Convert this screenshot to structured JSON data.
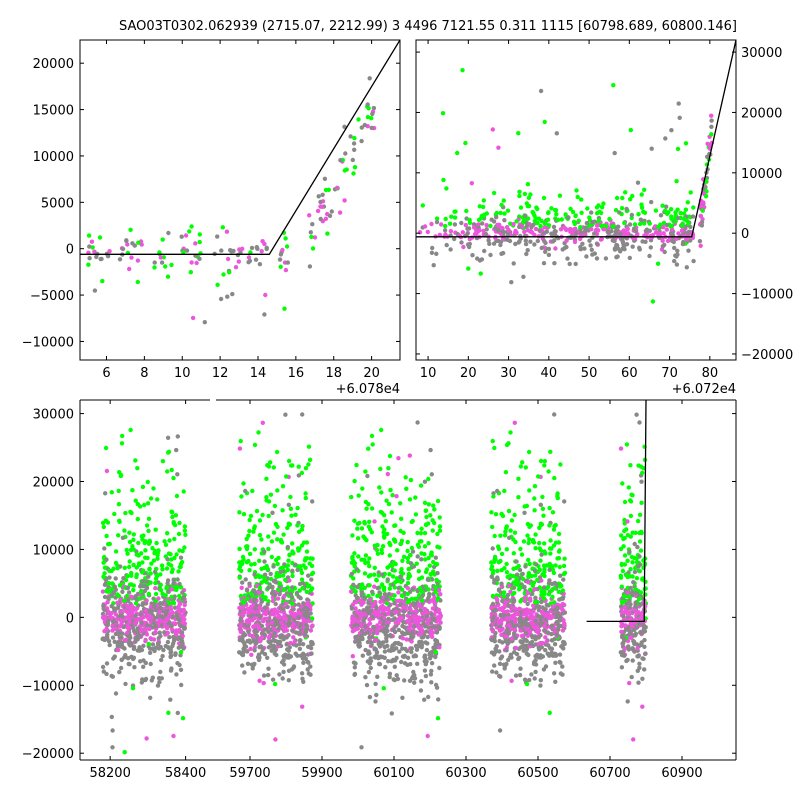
{
  "title": "SAO03T0302.062939 (2715.07, 2212.99)  3 4496 7121.55 0.311 1115 [60798.689, 60800.146]",
  "colors": {
    "gray": "#888888",
    "green": "#00ff00",
    "magenta": "#ee55dd",
    "line": "#000000"
  },
  "chart_data": [
    {
      "type": "scatter",
      "panel": "top-left",
      "x_offset_label": "+6.078e4",
      "xlim": [
        4.6,
        21.5
      ],
      "ylim": [
        -12000,
        22500
      ],
      "xticks": [
        6,
        8,
        10,
        12,
        14,
        16,
        18,
        20
      ],
      "xtick_labels": [
        "6",
        "8",
        "10",
        "12",
        "14",
        "16",
        "18",
        "20"
      ],
      "yticks": [
        -10000,
        -5000,
        0,
        5000,
        10000,
        15000,
        20000
      ],
      "ytick_labels": [
        "−10000",
        "−5000",
        "0",
        "5000",
        "10000",
        "15000",
        "20000"
      ],
      "yaxis_side": "left",
      "model_line": [
        [
          4.6,
          -600
        ],
        [
          14.6,
          -600
        ],
        [
          21.5,
          22500
        ]
      ],
      "clusters": [
        {
          "x": 5.5,
          "w": 1.4,
          "n": 18
        },
        {
          "x": 7.4,
          "w": 1.4,
          "n": 18
        },
        {
          "x": 9.0,
          "w": 1.0,
          "n": 12
        },
        {
          "x": 10.5,
          "w": 1.4,
          "n": 20
        },
        {
          "x": 12.5,
          "w": 1.6,
          "n": 22
        },
        {
          "x": 14.0,
          "w": 1.0,
          "n": 16
        },
        {
          "x": 15.3,
          "w": 0.6,
          "n": 12
        }
      ],
      "rise": {
        "x0": 16.7,
        "x1": 20.2,
        "n": 60
      },
      "series": [
        {
          "name": "",
          "color": "#888888"
        },
        {
          "name": "",
          "color": "#00ff00"
        },
        {
          "name": "",
          "color": "#ee55dd"
        }
      ]
    },
    {
      "type": "scatter",
      "panel": "top-right",
      "x_offset_label": "+6.072e4",
      "xlim": [
        7.0,
        86.5
      ],
      "ylim": [
        -21000,
        32000
      ],
      "xticks": [
        10,
        20,
        30,
        40,
        50,
        60,
        70,
        80
      ],
      "xtick_labels": [
        "10",
        "20",
        "30",
        "40",
        "50",
        "60",
        "70",
        "80"
      ],
      "yticks": [
        -20000,
        -10000,
        0,
        10000,
        20000,
        30000
      ],
      "ytick_labels": [
        "−20000",
        "−10000",
        "0",
        "10000",
        "20000",
        "30000"
      ],
      "yaxis_side": "right",
      "model_line": [
        [
          7.0,
          -600
        ],
        [
          75.5,
          -600
        ],
        [
          86.5,
          32000
        ]
      ],
      "dense_range": [
        7.5,
        76.0
      ],
      "rise": {
        "x0": 77.5,
        "x1": 80.5,
        "n": 50
      },
      "series": [
        {
          "name": "",
          "color": "#888888"
        },
        {
          "name": "",
          "color": "#00ff00"
        },
        {
          "name": "",
          "color": "#ee55dd"
        }
      ]
    },
    {
      "type": "scatter",
      "panel": "bottom",
      "broken_axis": true,
      "xlim_left": [
        58120,
        58470
      ],
      "xlim_right": [
        59600,
        61050
      ],
      "ylim": [
        -21000,
        32000
      ],
      "xticks": [
        58200,
        58400,
        59700,
        59900,
        60100,
        60300,
        60500,
        60700,
        60900
      ],
      "xtick_labels": [
        "58200",
        "58400",
        "59700",
        "59900",
        "60100",
        "60300",
        "60500",
        "60700",
        "60900"
      ],
      "yticks": [
        -20000,
        -10000,
        0,
        10000,
        20000,
        30000
      ],
      "ytick_labels": [
        "−20000",
        "−10000",
        "0",
        "10000",
        "20000",
        "30000"
      ],
      "yaxis_side": "left",
      "model_line": [
        [
          60635,
          -600
        ],
        [
          60795,
          -600
        ],
        [
          60800,
          32000
        ]
      ],
      "seasons": [
        {
          "x0": 58180,
          "x1": 58400,
          "n": 900
        },
        {
          "x0": 59670,
          "x1": 59875,
          "n": 850
        },
        {
          "x0": 59980,
          "x1": 60230,
          "n": 1000
        },
        {
          "x0": 60370,
          "x1": 60575,
          "n": 850
        },
        {
          "x0": 60730,
          "x1": 60800,
          "n": 350
        }
      ],
      "series": [
        {
          "name": "",
          "color": "#888888"
        },
        {
          "name": "",
          "color": "#00ff00"
        },
        {
          "name": "",
          "color": "#ee55dd"
        }
      ]
    }
  ]
}
